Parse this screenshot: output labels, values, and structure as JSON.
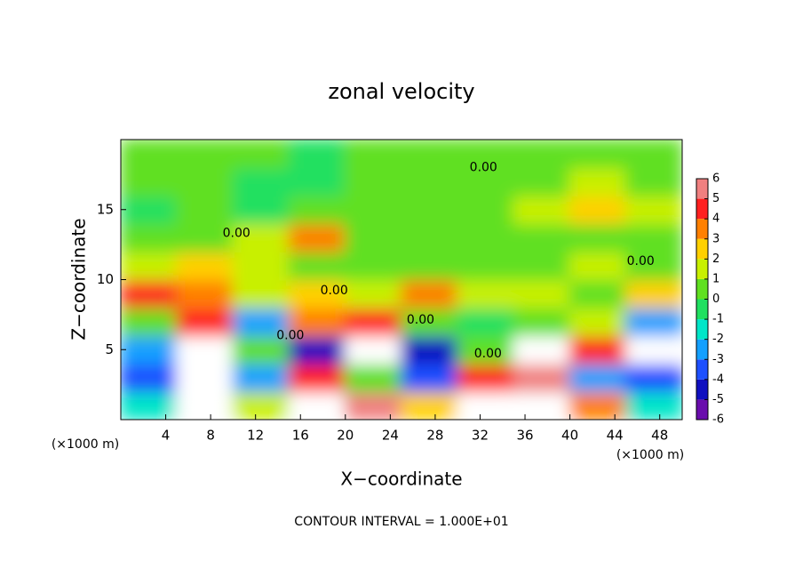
{
  "chart_data": {
    "type": "heatmap",
    "title": "zonal velocity",
    "x_label": "X−coordinate",
    "y_label": "Z−coordinate",
    "x_unit": "(×1000 m)",
    "y_unit": "(×1000 m)",
    "footer": "CONTOUR INTERVAL = 1.000E+01",
    "xlim": [
      0,
      50
    ],
    "ylim": [
      0,
      20
    ],
    "xticks": [
      4,
      8,
      12,
      16,
      20,
      24,
      28,
      32,
      36,
      40,
      44,
      48
    ],
    "yticks": [
      5,
      10,
      15
    ],
    "x_edges": [
      0,
      5,
      10,
      15,
      20,
      25,
      30,
      35,
      40,
      45,
      50
    ],
    "y_edges": [
      0,
      2,
      4,
      6,
      8,
      10,
      12,
      14,
      16,
      18,
      20
    ],
    "z": [
      [
        -2,
        7,
        1,
        7,
        6,
        2,
        7,
        7,
        3,
        -2
      ],
      [
        -4,
        7,
        -3,
        4,
        0,
        -4,
        4,
        5,
        -3,
        -4
      ],
      [
        -3,
        7,
        0,
        -5,
        7,
        -5,
        0,
        7,
        4,
        7
      ],
      [
        0,
        4,
        -3,
        3,
        4,
        0,
        -1,
        0,
        1,
        -3
      ],
      [
        4,
        3,
        1,
        2,
        1,
        3,
        1,
        1,
        0,
        2
      ],
      [
        1,
        2,
        1,
        0,
        0,
        0,
        0,
        0,
        1,
        0
      ],
      [
        0,
        0,
        1,
        3,
        0,
        0,
        0,
        0,
        0,
        0
      ],
      [
        -1,
        0,
        -1,
        0,
        0,
        0,
        0,
        1,
        2,
        1
      ],
      [
        0,
        0,
        -1,
        -1,
        0,
        0,
        0,
        0,
        1,
        0
      ],
      [
        0,
        0,
        0,
        -1,
        0,
        0,
        0,
        0,
        0,
        0
      ]
    ],
    "colorbar": {
      "ticks": [
        -6,
        -5,
        -4,
        -3,
        -2,
        -1,
        0,
        1,
        2,
        3,
        4,
        5,
        6
      ],
      "colors": [
        "#6a0dad",
        "#1010c0",
        "#1e50ff",
        "#14a0ff",
        "#00e6c8",
        "#20e060",
        "#60e020",
        "#c8f000",
        "#ffd000",
        "#ff8000",
        "#ff2020",
        "#f08080"
      ],
      "above_color": "#ffffff"
    },
    "contour_labels": [
      {
        "text": "0.00",
        "x": 10.3,
        "y": 13.3
      },
      {
        "text": "0.00",
        "x": 32.3,
        "y": 18.0
      },
      {
        "text": "0.00",
        "x": 19.0,
        "y": 9.2
      },
      {
        "text": "0.00",
        "x": 26.7,
        "y": 7.1
      },
      {
        "text": "0.00",
        "x": 15.1,
        "y": 6.0
      },
      {
        "text": "0.00",
        "x": 32.7,
        "y": 4.7
      },
      {
        "text": "0.00",
        "x": 46.3,
        "y": 11.3
      }
    ]
  }
}
